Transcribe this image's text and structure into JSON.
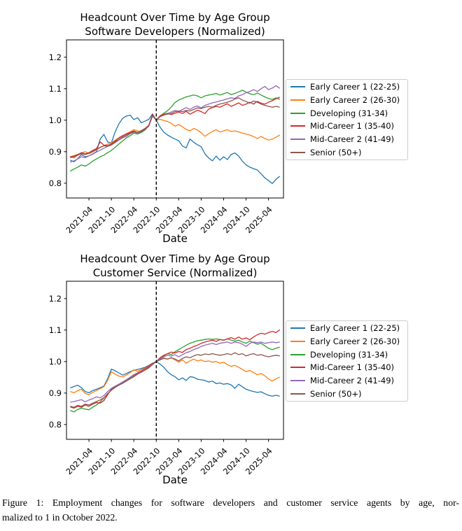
{
  "figure": {
    "caption_line1": "Figure 1: Employment changes for software developers and customer service agents by age, nor-",
    "caption_line2": "malized to 1 in October 2022."
  },
  "chart_data": [
    {
      "type": "line",
      "title": "Headcount Over Time by Age Group",
      "subtitle": "Software Developers (Normalized)",
      "xlabel": "Date",
      "ylabel": "",
      "ylim": [
        0.753,
        1.255
      ],
      "yticks": [
        0.8,
        0.9,
        1.0,
        1.1,
        1.2
      ],
      "x_monthly_start": "2020-11",
      "x_monthly_end": "2025-07",
      "xlim_indices": [
        -1,
        57
      ],
      "xtick_labels": [
        "2021-04",
        "2021-10",
        "2022-04",
        "2022-10",
        "2023-04",
        "2023-10",
        "2024-04",
        "2024-10",
        "2025-04"
      ],
      "xtick_month_indices": [
        5,
        11,
        17,
        23,
        29,
        35,
        41,
        47,
        53
      ],
      "vline_date": "2022-10",
      "vline_month_index": 23,
      "vline_style": "black dashed",
      "normalization_note": "all series = 1.0 at 2022-10",
      "legend_position": "center right, outside axes",
      "grid": false,
      "series": [
        {
          "name": "Early Career 1 (22-25)",
          "color": "#1f77b4",
          "values": [
            0.873,
            0.868,
            0.878,
            0.891,
            0.884,
            0.887,
            0.893,
            0.9,
            0.94,
            0.955,
            0.931,
            0.928,
            0.963,
            0.988,
            1.006,
            1.013,
            1.016,
            1.002,
            1.008,
            0.992,
            0.997,
            1.003,
            1.02,
            1.0,
            0.978,
            0.962,
            0.953,
            0.946,
            0.94,
            0.935,
            0.918,
            0.912,
            0.94,
            0.93,
            0.922,
            0.916,
            0.893,
            0.88,
            0.871,
            0.886,
            0.873,
            0.884,
            0.875,
            0.891,
            0.896,
            0.886,
            0.87,
            0.858,
            0.851,
            0.846,
            0.842,
            0.83,
            0.817,
            0.808,
            0.799,
            0.812,
            0.822
          ]
        },
        {
          "name": "Early Career 2 (26-30)",
          "color": "#ff7f0e",
          "values": [
            0.885,
            0.88,
            0.889,
            0.896,
            0.9,
            0.894,
            0.899,
            0.906,
            0.913,
            0.919,
            0.924,
            0.929,
            0.936,
            0.944,
            0.951,
            0.957,
            0.963,
            0.97,
            0.966,
            0.963,
            0.971,
            0.984,
            1.016,
            1.0,
            1.003,
            0.999,
            0.996,
            0.99,
            0.981,
            0.986,
            0.979,
            0.971,
            0.966,
            0.974,
            0.969,
            0.96,
            0.949,
            0.957,
            0.964,
            0.97,
            0.963,
            0.966,
            0.97,
            0.964,
            0.966,
            0.963,
            0.959,
            0.956,
            0.953,
            0.948,
            0.942,
            0.948,
            0.942,
            0.937,
            0.94,
            0.946,
            0.953
          ]
        },
        {
          "name": "Developing (31-34)",
          "color": "#2ca02c",
          "values": [
            0.838,
            0.845,
            0.851,
            0.858,
            0.854,
            0.861,
            0.87,
            0.877,
            0.884,
            0.889,
            0.897,
            0.904,
            0.914,
            0.924,
            0.934,
            0.944,
            0.951,
            0.959,
            0.956,
            0.961,
            0.969,
            0.982,
            1.014,
            1.0,
            1.013,
            1.022,
            1.03,
            1.042,
            1.056,
            1.064,
            1.069,
            1.074,
            1.077,
            1.08,
            1.077,
            1.071,
            1.077,
            1.08,
            1.082,
            1.085,
            1.08,
            1.084,
            1.088,
            1.081,
            1.085,
            1.09,
            1.095,
            1.089,
            1.084,
            1.081,
            1.086,
            1.08,
            1.074,
            1.069,
            1.066,
            1.071,
            1.066
          ]
        },
        {
          "name": "Mid-Career 1 (35-40)",
          "color": "#d62728",
          "values": [
            0.884,
            0.887,
            0.891,
            0.897,
            0.893,
            0.897,
            0.904,
            0.91,
            0.931,
            0.921,
            0.919,
            0.925,
            0.934,
            0.944,
            0.951,
            0.957,
            0.961,
            0.966,
            0.961,
            0.967,
            0.974,
            0.984,
            1.018,
            1.0,
            1.014,
            1.019,
            1.022,
            1.018,
            1.022,
            1.026,
            1.021,
            1.028,
            1.019,
            1.025,
            1.032,
            1.027,
            1.021,
            1.035,
            1.04,
            1.044,
            1.041,
            1.047,
            1.052,
            1.044,
            1.049,
            1.055,
            1.047,
            1.051,
            1.057,
            1.051,
            1.06,
            1.054,
            1.051,
            1.057,
            1.062,
            1.068,
            1.073
          ]
        },
        {
          "name": "Mid-Career 2 (41-49)",
          "color": "#9467bd",
          "values": [
            0.867,
            0.871,
            0.877,
            0.884,
            0.881,
            0.887,
            0.892,
            0.899,
            0.905,
            0.911,
            0.917,
            0.921,
            0.929,
            0.937,
            0.944,
            0.949,
            0.957,
            0.962,
            0.959,
            0.964,
            0.971,
            0.981,
            1.013,
            1.0,
            1.011,
            1.016,
            1.021,
            1.026,
            1.031,
            1.027,
            1.034,
            1.04,
            1.034,
            1.041,
            1.045,
            1.039,
            1.047,
            1.051,
            1.055,
            1.058,
            1.061,
            1.064,
            1.068,
            1.071,
            1.069,
            1.077,
            1.081,
            1.087,
            1.091,
            1.097,
            1.091,
            1.1,
            1.107,
            1.097,
            1.102,
            1.11,
            1.101
          ]
        },
        {
          "name": "Senior (50+)",
          "color": "#8c564b",
          "values": [
            0.881,
            0.884,
            0.889,
            0.894,
            0.891,
            0.895,
            0.901,
            0.907,
            0.914,
            0.919,
            0.917,
            0.923,
            0.931,
            0.939,
            0.947,
            0.953,
            0.959,
            0.964,
            0.961,
            0.965,
            0.972,
            0.983,
            1.015,
            1.0,
            1.011,
            1.017,
            1.019,
            1.021,
            1.027,
            1.029,
            1.027,
            1.031,
            1.029,
            1.034,
            1.039,
            1.037,
            1.041,
            1.044,
            1.041,
            1.047,
            1.051,
            1.054,
            1.057,
            1.061,
            1.067,
            1.071,
            1.064,
            1.059,
            1.054,
            1.061,
            1.057,
            1.051,
            1.047,
            1.044,
            1.041,
            1.044,
            1.041
          ]
        }
      ]
    },
    {
      "type": "line",
      "title": "Headcount Over Time by Age Group",
      "subtitle": "Customer Service (Normalized)",
      "xlabel": "Date",
      "ylabel": "",
      "ylim": [
        0.753,
        1.255
      ],
      "yticks": [
        0.8,
        0.9,
        1.0,
        1.1,
        1.2
      ],
      "x_monthly_start": "2020-11",
      "x_monthly_end": "2025-07",
      "xlim_indices": [
        -1,
        57
      ],
      "xtick_labels": [
        "2021-04",
        "2021-10",
        "2022-04",
        "2022-10",
        "2023-04",
        "2023-10",
        "2024-04",
        "2024-10",
        "2025-04"
      ],
      "xtick_month_indices": [
        5,
        11,
        17,
        23,
        29,
        35,
        41,
        47,
        53
      ],
      "vline_date": "2022-10",
      "vline_month_index": 23,
      "vline_style": "black dashed",
      "normalization_note": "all series = 1.0 at 2022-10",
      "legend_position": "center right, outside axes",
      "grid": false,
      "series": [
        {
          "name": "Early Career 1 (22-25)",
          "color": "#1f77b4",
          "values": [
            0.916,
            0.921,
            0.925,
            0.917,
            0.905,
            0.901,
            0.908,
            0.912,
            0.917,
            0.922,
            0.946,
            0.976,
            0.971,
            0.964,
            0.957,
            0.962,
            0.968,
            0.972,
            0.975,
            0.978,
            0.982,
            0.988,
            0.995,
            1.0,
            0.992,
            0.982,
            0.968,
            0.958,
            0.952,
            0.942,
            0.948,
            0.94,
            0.952,
            0.95,
            0.944,
            0.942,
            0.94,
            0.935,
            0.938,
            0.93,
            0.932,
            0.928,
            0.93,
            0.926,
            0.915,
            0.928,
            0.92,
            0.912,
            0.908,
            0.905,
            0.902,
            0.904,
            0.898,
            0.893,
            0.89,
            0.893,
            0.89
          ]
        },
        {
          "name": "Early Career 2 (26-30)",
          "color": "#ff7f0e",
          "values": [
            0.905,
            0.901,
            0.908,
            0.912,
            0.899,
            0.895,
            0.902,
            0.908,
            0.914,
            0.92,
            0.941,
            0.968,
            0.96,
            0.954,
            0.951,
            0.957,
            0.965,
            0.974,
            0.969,
            0.974,
            0.98,
            0.986,
            0.994,
            1.0,
            1.006,
            1.011,
            1.008,
            1.012,
            1.005,
            0.998,
            1.005,
            0.995,
            1.002,
            1.008,
            1.002,
            1.005,
            1.0,
            1.002,
            0.998,
            1.0,
            0.995,
            0.998,
            0.99,
            0.985,
            0.988,
            0.982,
            0.975,
            0.968,
            0.972,
            0.965,
            0.958,
            0.962,
            0.955,
            0.945,
            0.938,
            0.945,
            0.951
          ]
        },
        {
          "name": "Developing (31-34)",
          "color": "#2ca02c",
          "values": [
            0.845,
            0.84,
            0.848,
            0.852,
            0.849,
            0.847,
            0.855,
            0.862,
            0.872,
            0.884,
            0.898,
            0.909,
            0.918,
            0.925,
            0.932,
            0.94,
            0.948,
            0.955,
            0.962,
            0.968,
            0.975,
            0.982,
            0.992,
            1.0,
            1.01,
            1.018,
            1.025,
            1.022,
            1.031,
            1.038,
            1.045,
            1.052,
            1.058,
            1.062,
            1.066,
            1.068,
            1.07,
            1.072,
            1.07,
            1.072,
            1.07,
            1.068,
            1.072,
            1.068,
            1.065,
            1.068,
            1.062,
            1.058,
            1.065,
            1.06,
            1.055,
            1.058,
            1.05,
            1.042,
            1.038,
            1.042,
            1.046
          ]
        },
        {
          "name": "Mid-Career 1 (35-40)",
          "color": "#d62728",
          "values": [
            0.856,
            0.852,
            0.858,
            0.855,
            0.862,
            0.858,
            0.865,
            0.87,
            0.868,
            0.876,
            0.895,
            0.912,
            0.92,
            0.928,
            0.935,
            0.942,
            0.95,
            0.958,
            0.964,
            0.97,
            0.977,
            0.985,
            0.994,
            1.0,
            1.012,
            1.02,
            1.025,
            1.03,
            1.027,
            1.032,
            1.029,
            1.038,
            1.042,
            1.048,
            1.052,
            1.058,
            1.062,
            1.065,
            1.068,
            1.064,
            1.07,
            1.068,
            1.072,
            1.076,
            1.071,
            1.078,
            1.071,
            1.075,
            1.069,
            1.078,
            1.085,
            1.09,
            1.087,
            1.092,
            1.096,
            1.092,
            1.101
          ]
        },
        {
          "name": "Mid-Career 2 (41-49)",
          "color": "#9467bd",
          "values": [
            0.871,
            0.873,
            0.876,
            0.879,
            0.872,
            0.878,
            0.882,
            0.888,
            0.885,
            0.892,
            0.905,
            0.915,
            0.922,
            0.928,
            0.935,
            0.942,
            0.95,
            0.956,
            0.962,
            0.968,
            0.975,
            0.982,
            0.992,
            1.0,
            1.008,
            1.015,
            1.02,
            1.017,
            1.022,
            1.015,
            1.022,
            1.028,
            1.032,
            1.038,
            1.042,
            1.048,
            1.052,
            1.055,
            1.058,
            1.054,
            1.058,
            1.06,
            1.062,
            1.058,
            1.062,
            1.06,
            1.055,
            1.048,
            1.058,
            1.062,
            1.06,
            1.062,
            1.058,
            1.06,
            1.062,
            1.06,
            1.062
          ]
        },
        {
          "name": "Senior (50+)",
          "color": "#8c564b",
          "values": [
            0.858,
            0.855,
            0.861,
            0.858,
            0.865,
            0.862,
            0.868,
            0.873,
            0.878,
            0.885,
            0.898,
            0.91,
            0.918,
            0.925,
            0.931,
            0.938,
            0.945,
            0.952,
            0.96,
            0.966,
            0.973,
            0.98,
            0.99,
            1.0,
            1.005,
            1.01,
            1.008,
            1.012,
            1.008,
            1.002,
            1.01,
            1.015,
            1.012,
            1.018,
            1.022,
            1.02,
            1.024,
            1.022,
            1.025,
            1.022,
            1.02,
            1.022,
            1.025,
            1.022,
            1.028,
            1.022,
            1.025,
            1.018,
            1.022,
            1.025,
            1.02,
            1.022,
            1.018,
            1.015,
            1.018,
            1.02,
            1.018
          ]
        }
      ]
    }
  ]
}
